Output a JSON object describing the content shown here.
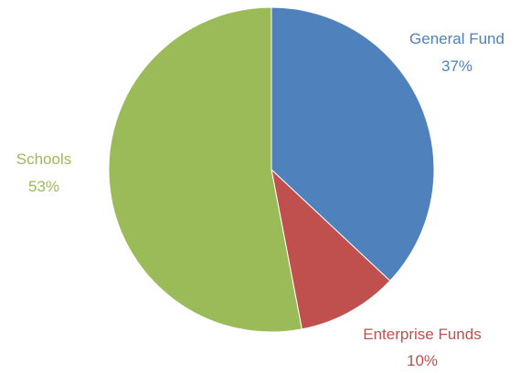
{
  "chart_data": {
    "type": "pie",
    "title": "",
    "slices": [
      {
        "name": "General Fund",
        "value": 37,
        "value_label": "37%",
        "color": "#4F81BD"
      },
      {
        "name": "Enterprise Funds",
        "value": 10,
        "value_label": "10%",
        "color": "#C0504D"
      },
      {
        "name": "Schools",
        "value": 53,
        "value_label": "53%",
        "color": "#9BBB59"
      }
    ],
    "start_angle": "12 o'clock",
    "direction": "clockwise",
    "labels": "outside, category name above percentage, colored like slice",
    "legend": "none"
  }
}
